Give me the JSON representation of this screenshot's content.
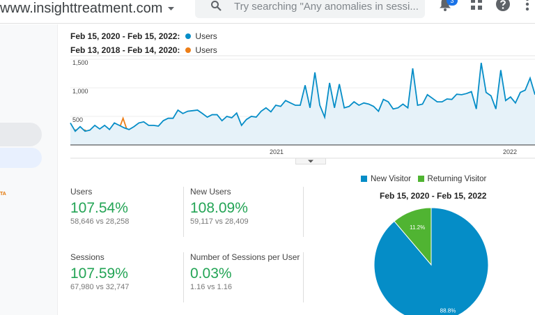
{
  "header": {
    "site": "www.insighttreatment.com",
    "search_placeholder": "Try searching \"Any anomalies in sessi...",
    "notification_count": "3",
    "icons": [
      "search-icon",
      "bell-icon",
      "apps-grid-icon",
      "help-icon",
      "more-vert-icon"
    ]
  },
  "sidebar": {
    "label": "TA"
  },
  "legend": {
    "current_range": "Feb 15, 2020 - Feb 15, 2022:",
    "current_metric": "Users",
    "previous_range": "Feb 13, 2018 - Feb 14, 2020:",
    "previous_metric": "Users"
  },
  "colors": {
    "current": "#058dc7",
    "previous": "#ed7e17",
    "new_visitor": "#058dc7",
    "returning_visitor": "#50b432",
    "positive": "#23a455"
  },
  "chart_data": [
    {
      "type": "line",
      "yticks": [
        "1,500",
        "1,000",
        "500"
      ],
      "ylim": [
        0,
        1500
      ],
      "xticks": [
        "2021",
        "2022"
      ],
      "grid": true,
      "series": [
        {
          "name": "Users",
          "range": "Feb 15, 2020 - Feb 15, 2022",
          "values": [
            385,
            240,
            320,
            240,
            260,
            343,
            280,
            343,
            270,
            385,
            343,
            300,
            270,
            320,
            385,
            405,
            343,
            343,
            330,
            425,
            467,
            467,
            610,
            550,
            590,
            600,
            610,
            550,
            487,
            530,
            530,
            425,
            500,
            475,
            558,
            343,
            446,
            500,
            487,
            590,
            650,
            580,
            695,
            675,
            777,
            735,
            695,
            695,
            1045,
            650,
            1270,
            695,
            487,
            1086,
            650,
            1065,
            650,
            675,
            755,
            695,
            735,
            715,
            675,
            590,
            797,
            755,
            630,
            650,
            715,
            650,
            1340,
            695,
            715,
            880,
            818,
            755,
            755,
            805,
            797,
            888,
            880,
            900,
            933,
            630,
            1437,
            920,
            860,
            630,
            1310,
            777,
            840,
            735,
            920,
            960,
            1170,
            880
          ]
        },
        {
          "name": "Users",
          "range": "Feb 13, 2018 - Feb 14, 2020",
          "values": [
            260,
            260,
            270,
            260,
            220,
            206,
            206,
            200,
            240,
            260,
            240,
            467,
            220,
            270,
            260,
            200,
            200,
            180,
            220,
            260,
            180,
            180,
            220,
            157,
            145,
            145,
            157,
            220,
            200,
            260,
            220,
            200,
            180,
            220,
            180,
            145,
            280,
            240,
            200,
            180,
            124,
            157,
            200,
            220,
            270,
            240,
            260,
            240,
            240,
            260,
            220,
            220,
            270,
            280,
            343,
            320,
            355,
            290,
            343,
            385,
            365,
            343,
            350,
            280,
            310,
            365,
            570,
            260,
            280,
            270,
            240,
            270,
            260,
            385,
            365,
            405,
            467,
            487,
            495,
            495,
            508,
            425,
            487,
            500,
            446,
            540,
            365,
            446,
            520,
            487,
            260,
            385,
            446,
            570,
            405,
            350,
            405,
            425
          ]
        }
      ]
    },
    {
      "type": "pie",
      "title": "Feb 15, 2020 - Feb 15, 2022",
      "slices": [
        {
          "label": "New Visitor",
          "value": 88.8,
          "text": "88.8%"
        },
        {
          "label": "Returning Visitor",
          "value": 11.2,
          "text": "11.2%"
        }
      ],
      "legend": "top"
    }
  ],
  "metrics": [
    {
      "label": "Users",
      "change": "107.54%",
      "compare": "58,646 vs 28,258"
    },
    {
      "label": "New Users",
      "change": "108.09%",
      "compare": "59,117 vs 28,409"
    },
    {
      "label": "Sessions",
      "change": "107.59%",
      "compare": "67,980 vs 32,747"
    },
    {
      "label": "Number of Sessions per User",
      "change": "0.03%",
      "compare": "1.16 vs 1.16"
    }
  ]
}
